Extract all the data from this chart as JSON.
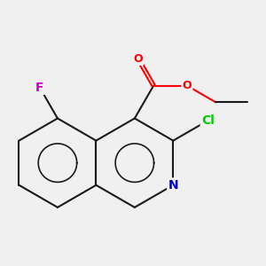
{
  "background_color": "#f0f0f0",
  "bond_color": "#1a1a1a",
  "atom_colors": {
    "O": "#ff0000",
    "N": "#0000cc",
    "F": "#cc00cc",
    "Cl": "#00cc00"
  },
  "figsize": [
    3.0,
    3.0
  ],
  "dpi": 100
}
